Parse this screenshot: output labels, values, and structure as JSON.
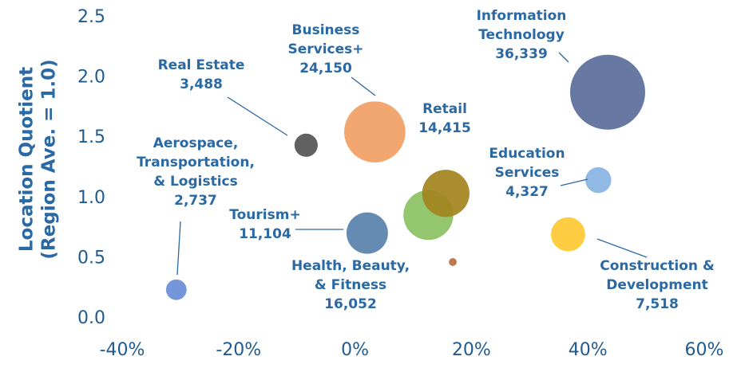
{
  "chart_data": {
    "type": "scatter",
    "y_label_lines": [
      "Location Quotient",
      "(Region Ave. = 1.0)"
    ],
    "xlim": [
      -40,
      60
    ],
    "xticks": [
      {
        "value": -40,
        "label": "-40%"
      },
      {
        "value": -20,
        "label": "-20%"
      },
      {
        "value": 0,
        "label": "0%"
      },
      {
        "value": 20,
        "label": "20%"
      },
      {
        "value": 40,
        "label": "40%"
      },
      {
        "value": 60,
        "label": "60%"
      }
    ],
    "ylim": [
      0,
      2.5
    ],
    "yticks": [
      {
        "value": 0,
        "label": "0.0"
      },
      {
        "value": 0.5,
        "label": "0.5"
      },
      {
        "value": 1,
        "label": "1.0"
      },
      {
        "value": 1.5,
        "label": "1.5"
      },
      {
        "value": 2,
        "label": "2.0"
      },
      {
        "value": 2.5,
        "label": "2.5"
      }
    ],
    "series": [
      {
        "name_lines": [
          "Aerospace,",
          "Transportation,",
          "& Logistics"
        ],
        "color": "#6a8ed6",
        "x": -30.7,
        "y": 0.24,
        "size": 2737,
        "size_label": "2,737"
      },
      {
        "name_lines": [
          "Real Estate"
        ],
        "color": "#555555",
        "x": -8.4,
        "y": 1.44,
        "size": 3488,
        "size_label": "3,488"
      },
      {
        "name_lines": [
          "Business",
          "Services+"
        ],
        "color": "#f0a064",
        "x": 3.4,
        "y": 1.55,
        "size": 24150,
        "size_label": "24,150"
      },
      {
        "name_lines": [
          "Tourism+"
        ],
        "color": "#5a82ad",
        "x": 2.1,
        "y": 0.71,
        "size": 11104,
        "size_label": "11,104"
      },
      {
        "name_lines": [
          "Health, Beauty,",
          "& Fitness"
        ],
        "color": "#8cc264",
        "x": 12.6,
        "y": 0.86,
        "size": 16052,
        "size_label": "16,052"
      },
      {
        "name_lines": [
          "Retail"
        ],
        "color": "#a2841e",
        "x": 15.6,
        "y": 1.04,
        "size": 14415,
        "size_label": "14,415"
      },
      {
        "name_lines": null,
        "color": "#b8703e",
        "x": 16.8,
        "y": 0.47,
        "size": 400,
        "size_label": null
      },
      {
        "name_lines": [
          "Information",
          "Technology"
        ],
        "color": "#5b6f9c",
        "x": 43.4,
        "y": 1.88,
        "size": 36339,
        "size_label": "36,339"
      },
      {
        "name_lines": [
          "Education",
          "Services"
        ],
        "color": "#88b4e2",
        "x": 41.8,
        "y": 1.15,
        "size": 4327,
        "size_label": "4,327"
      },
      {
        "name_lines": [
          "Construction &",
          "Development"
        ],
        "color": "#fec934",
        "x": 36.6,
        "y": 0.7,
        "size": 7518,
        "size_label": "7,518"
      }
    ]
  }
}
